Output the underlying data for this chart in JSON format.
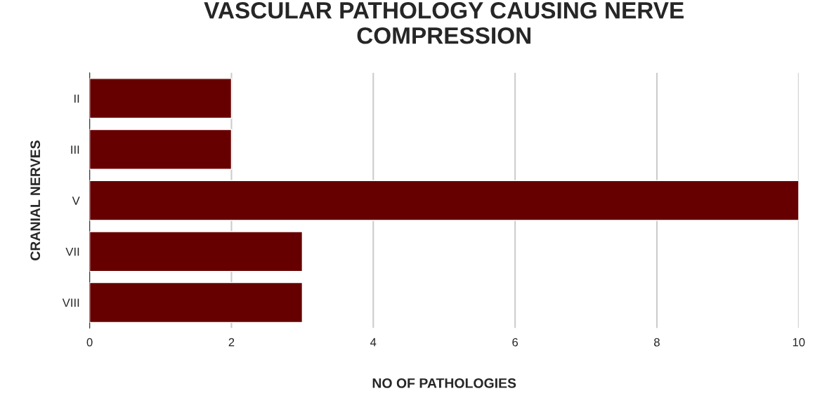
{
  "chart_data": {
    "type": "bar",
    "orientation": "horizontal",
    "title": "VASCULAR PATHOLOGY CAUSING NERVE\nCOMPRESSION",
    "xlabel": "NO OF PATHOLOGIES",
    "ylabel": "CRANIAL NERVES",
    "categories": [
      "II",
      "III",
      "V",
      "VII",
      "VIII"
    ],
    "values": [
      2,
      2,
      10,
      3,
      3
    ],
    "color": "#660000",
    "xlim": [
      0,
      10
    ],
    "xticks": [
      0,
      2,
      4,
      6,
      8,
      10
    ],
    "grid": "x",
    "legend": false
  }
}
